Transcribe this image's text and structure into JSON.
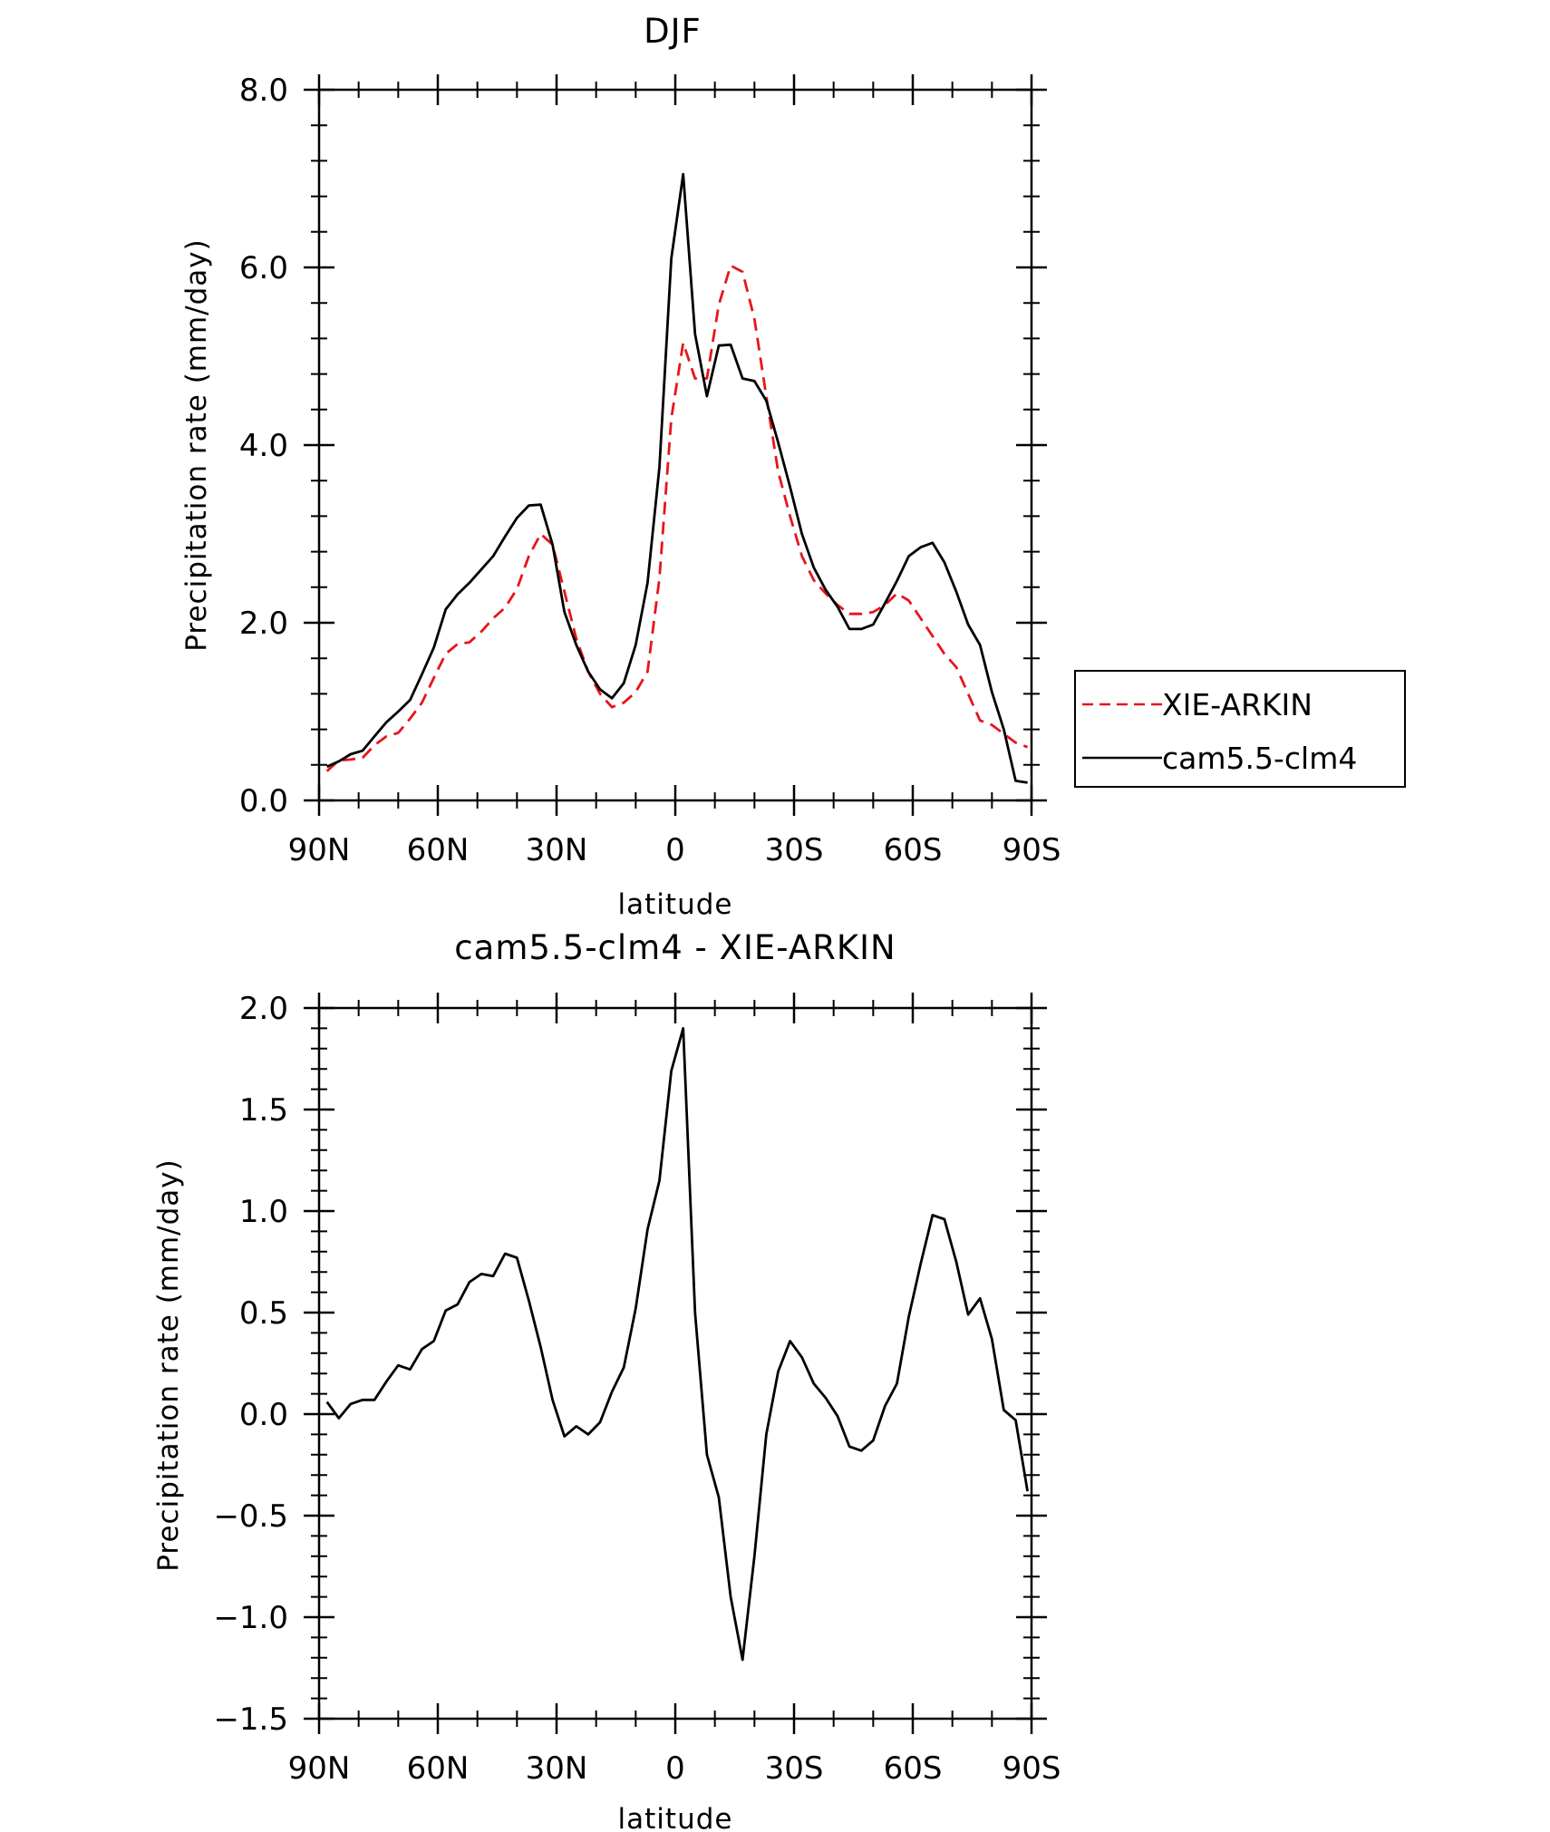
{
  "chart_data": [
    {
      "type": "line",
      "title": "DJF",
      "xlabel": "latitude",
      "ylabel": "Precipitation rate (mm/day)",
      "xlim": [
        90,
        -90
      ],
      "ylim": [
        0,
        8
      ],
      "xticks": [
        {
          "value": 90,
          "label": "90N"
        },
        {
          "value": 60,
          "label": "60N"
        },
        {
          "value": 30,
          "label": "30N"
        },
        {
          "value": 0,
          "label": "0"
        },
        {
          "value": -30,
          "label": "30S"
        },
        {
          "value": -60,
          "label": "60S"
        },
        {
          "value": -90,
          "label": "90S"
        }
      ],
      "yticks": [
        {
          "value": 0,
          "label": "0.0"
        },
        {
          "value": 2,
          "label": "2.0"
        },
        {
          "value": 4,
          "label": "4.0"
        },
        {
          "value": 6,
          "label": "6.0"
        },
        {
          "value": 8,
          "label": "8.0"
        }
      ],
      "legend": {
        "position": "right-outside"
      },
      "series": [
        {
          "name": "XIE-ARKIN",
          "color": "#e8141b",
          "dash": "dashed",
          "x": [
            88,
            85,
            82,
            79,
            76,
            73,
            70,
            67,
            64,
            61,
            58,
            55,
            52,
            49,
            46,
            43,
            40,
            37,
            34,
            31,
            28,
            25,
            22,
            19,
            16,
            13,
            10,
            7,
            4,
            1,
            -2,
            -5,
            -8,
            -11,
            -14,
            -17,
            -20,
            -23,
            -26,
            -29,
            -32,
            -35,
            -38,
            -41,
            -44,
            -47,
            -50,
            -53,
            -56,
            -59,
            -62,
            -65,
            -68,
            -71,
            -74,
            -77,
            -80,
            -83,
            -86,
            -89
          ],
          "values": [
            0.33,
            0.45,
            0.46,
            0.48,
            0.62,
            0.72,
            0.76,
            0.92,
            1.1,
            1.38,
            1.65,
            1.76,
            1.78,
            1.9,
            2.05,
            2.17,
            2.38,
            2.75,
            3.0,
            2.88,
            2.35,
            1.82,
            1.45,
            1.2,
            1.05,
            1.1,
            1.22,
            1.45,
            2.5,
            4.3,
            5.15,
            4.75,
            4.75,
            5.58,
            6.02,
            5.95,
            5.42,
            4.55,
            3.7,
            3.2,
            2.75,
            2.48,
            2.33,
            2.2,
            2.1,
            2.1,
            2.12,
            2.2,
            2.33,
            2.25,
            2.05,
            1.85,
            1.65,
            1.5,
            1.2,
            0.9,
            0.85,
            0.75,
            0.65,
            0.6
          ]
        },
        {
          "name": "cam5.5-clm4",
          "color": "#000000",
          "dash": "solid",
          "x": [
            88,
            85,
            82,
            79,
            76,
            73,
            70,
            67,
            64,
            61,
            58,
            55,
            52,
            49,
            46,
            43,
            40,
            37,
            34,
            31,
            28,
            25,
            22,
            19,
            16,
            13,
            10,
            7,
            4,
            1,
            -2,
            -5,
            -8,
            -11,
            -14,
            -17,
            -20,
            -23,
            -26,
            -29,
            -32,
            -35,
            -38,
            -41,
            -44,
            -47,
            -50,
            -53,
            -56,
            -59,
            -62,
            -65,
            -68,
            -71,
            -74,
            -77,
            -80,
            -83,
            -86,
            -89
          ],
          "values": [
            0.38,
            0.44,
            0.52,
            0.56,
            0.72,
            0.88,
            1.0,
            1.13,
            1.42,
            1.72,
            2.15,
            2.32,
            2.45,
            2.6,
            2.75,
            2.97,
            3.18,
            3.32,
            3.33,
            2.88,
            2.12,
            1.75,
            1.45,
            1.25,
            1.15,
            1.32,
            1.75,
            2.45,
            3.75,
            6.1,
            7.05,
            5.25,
            4.55,
            5.12,
            5.13,
            4.75,
            4.72,
            4.5,
            4.03,
            3.53,
            3.0,
            2.62,
            2.37,
            2.18,
            1.93,
            1.93,
            1.98,
            2.22,
            2.47,
            2.75,
            2.85,
            2.9,
            2.68,
            2.35,
            1.98,
            1.75,
            1.22,
            0.8,
            0.22,
            0.2
          ]
        }
      ]
    },
    {
      "type": "line",
      "title": "cam5.5-clm4 - XIE-ARKIN",
      "xlabel": "latitude",
      "ylabel": "Precipitation rate (mm/day)",
      "xlim": [
        90,
        -90
      ],
      "ylim": [
        -1.5,
        2.0
      ],
      "xticks": [
        {
          "value": 90,
          "label": "90N"
        },
        {
          "value": 60,
          "label": "60N"
        },
        {
          "value": 30,
          "label": "30N"
        },
        {
          "value": 0,
          "label": "0"
        },
        {
          "value": -30,
          "label": "30S"
        },
        {
          "value": -60,
          "label": "60S"
        },
        {
          "value": -90,
          "label": "90S"
        }
      ],
      "yticks": [
        {
          "value": -1.5,
          "label": "−1.5"
        },
        {
          "value": -1.0,
          "label": "−1.0"
        },
        {
          "value": -0.5,
          "label": "−0.5"
        },
        {
          "value": 0.0,
          "label": "0.0"
        },
        {
          "value": 0.5,
          "label": "0.5"
        },
        {
          "value": 1.0,
          "label": "1.0"
        },
        {
          "value": 1.5,
          "label": "1.5"
        },
        {
          "value": 2.0,
          "label": "2.0"
        }
      ],
      "series": [
        {
          "name": "cam5.5-clm4 - XIE-ARKIN",
          "color": "#000000",
          "dash": "solid",
          "x": [
            88,
            85,
            82,
            79,
            76,
            73,
            70,
            67,
            64,
            61,
            58,
            55,
            52,
            49,
            46,
            43,
            40,
            37,
            34,
            31,
            28,
            25,
            22,
            19,
            16,
            13,
            10,
            7,
            4,
            1,
            -2,
            -5,
            -8,
            -11,
            -14,
            -17,
            -20,
            -23,
            -26,
            -29,
            -32,
            -35,
            -38,
            -41,
            -44,
            -47,
            -50,
            -53,
            -56,
            -59,
            -62,
            -65,
            -68,
            -71,
            -74,
            -77,
            -80,
            -83,
            -86,
            -89
          ],
          "values": [
            0.06,
            -0.02,
            0.05,
            0.07,
            0.07,
            0.16,
            0.24,
            0.22,
            0.32,
            0.36,
            0.51,
            0.54,
            0.65,
            0.69,
            0.68,
            0.79,
            0.77,
            0.56,
            0.33,
            0.07,
            -0.11,
            -0.06,
            -0.1,
            -0.04,
            0.11,
            0.23,
            0.52,
            0.91,
            1.15,
            1.69,
            1.9,
            0.5,
            -0.2,
            -0.41,
            -0.9,
            -1.21,
            -0.7,
            -0.1,
            0.21,
            0.36,
            0.28,
            0.15,
            0.08,
            -0.01,
            -0.16,
            -0.18,
            -0.13,
            0.04,
            0.15,
            0.48,
            0.74,
            0.98,
            0.96,
            0.75,
            0.49,
            0.57,
            0.37,
            0.02,
            -0.03,
            -0.38
          ]
        }
      ]
    }
  ]
}
